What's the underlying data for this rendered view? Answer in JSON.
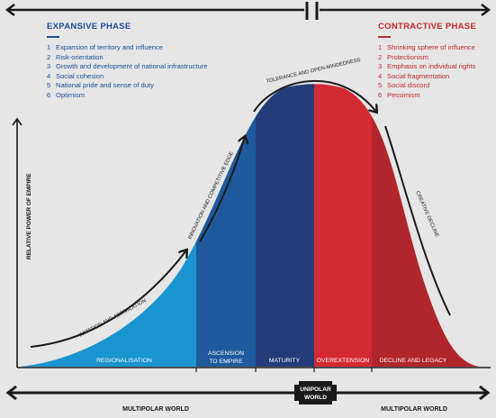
{
  "expansive_phase": {
    "title": "EXPANSIVE PHASE",
    "items": [
      {
        "num": "1",
        "text": "Expansion of territory and influence"
      },
      {
        "num": "2",
        "text": "Risk-orientation"
      },
      {
        "num": "3",
        "text": "Growth and development of national infrastructure"
      },
      {
        "num": "4",
        "text": "Social cohesion"
      },
      {
        "num": "5",
        "text": "National pride and sense of duty"
      },
      {
        "num": "6",
        "text": "Optimism"
      }
    ]
  },
  "contractive_phase": {
    "title": "CONTRACTIVE PHASE",
    "items": [
      {
        "num": "1",
        "text": "Shrinking sphere of influence"
      },
      {
        "num": "2",
        "text": "Protectionism"
      },
      {
        "num": "3",
        "text": "Emphasis on individual rights"
      },
      {
        "num": "4",
        "text": "Social fragmentation"
      },
      {
        "num": "5",
        "text": "Social discord"
      },
      {
        "num": "6",
        "text": "Pessimism"
      }
    ]
  },
  "y_axis_label": "RELATIVE POWER OF EMPIRE",
  "stages": [
    {
      "label": "REGIONALISATION",
      "color": "#1a94cf"
    },
    {
      "label": "ASCENSION",
      "label2": "TO EMPIRE",
      "color": "#1e5a9c"
    },
    {
      "label": "MATURITY",
      "color": "#243d7a"
    },
    {
      "label": "OVEREXTENSION",
      "color": "#d42a34"
    },
    {
      "label": "DECLINE AND LEGACY",
      "color": "#b1262c"
    }
  ],
  "curve_labels": {
    "imitation": "IMITATION AND ASSIMILATION",
    "innovation": "INNOVATION AND COMPETITIVE EDGE",
    "tolerance": "TOLERANCE AND OPEN-MINDEDNESS",
    "creative": "CREATIVE DECLINE"
  },
  "bottom": {
    "left": "MULTIPOLAR WORLD",
    "center_line1": "UNIPOLAR",
    "center_line2": "WORLD",
    "right": "MULTIPOLAR WORLD"
  }
}
